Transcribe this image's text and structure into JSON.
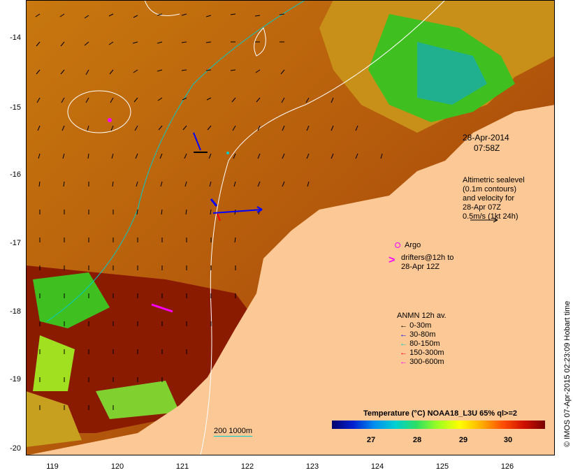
{
  "map": {
    "timestamp_date": "28-Apr-2014",
    "timestamp_time": "07:58Z",
    "altimetry_note": [
      "Altimetric sealevel",
      "(0.1m contours)",
      "and velocity for",
      "28-Apr 07Z",
      "0.5m/s (1kt 24h)"
    ],
    "argo_label": "Argo",
    "drifters_note": [
      "drifters@12h to",
      "28-Apr 12Z"
    ],
    "anmn_title": "ANMN 12h av.",
    "anmn_items": [
      {
        "label": "0-30m",
        "color": "#000000"
      },
      {
        "label": "30-80m",
        "color": "#0000ff"
      },
      {
        "label": "80-150m",
        "color": "#00cccc"
      },
      {
        "label": "150-300m",
        "color": "#ff0000"
      },
      {
        "label": "300-600m",
        "color": "#ff00ff"
      }
    ],
    "bathy_label": "200 1000m",
    "colorbar_title": "Temperature (°C) NOAA18_L3U 65% ql>=2",
    "colorbar_ticks": [
      "27",
      "28",
      "29",
      "30"
    ],
    "credit": "© IMOS 07-Apr-2015 02:23:09 Hobart time",
    "y_ticks": [
      "-14",
      "-15",
      "-16",
      "-17",
      "-18",
      "-19",
      "-20"
    ],
    "x_ticks": [
      "119",
      "120",
      "121",
      "122",
      "123",
      "124",
      "125",
      "126"
    ],
    "colors": {
      "land": "#fcc896",
      "sea_warm": "#c86a10",
      "sea_hot": "#8a1a00",
      "sea_cool": "#40c020",
      "contour": "#ffffff",
      "bathy200": "#00cccc"
    }
  }
}
